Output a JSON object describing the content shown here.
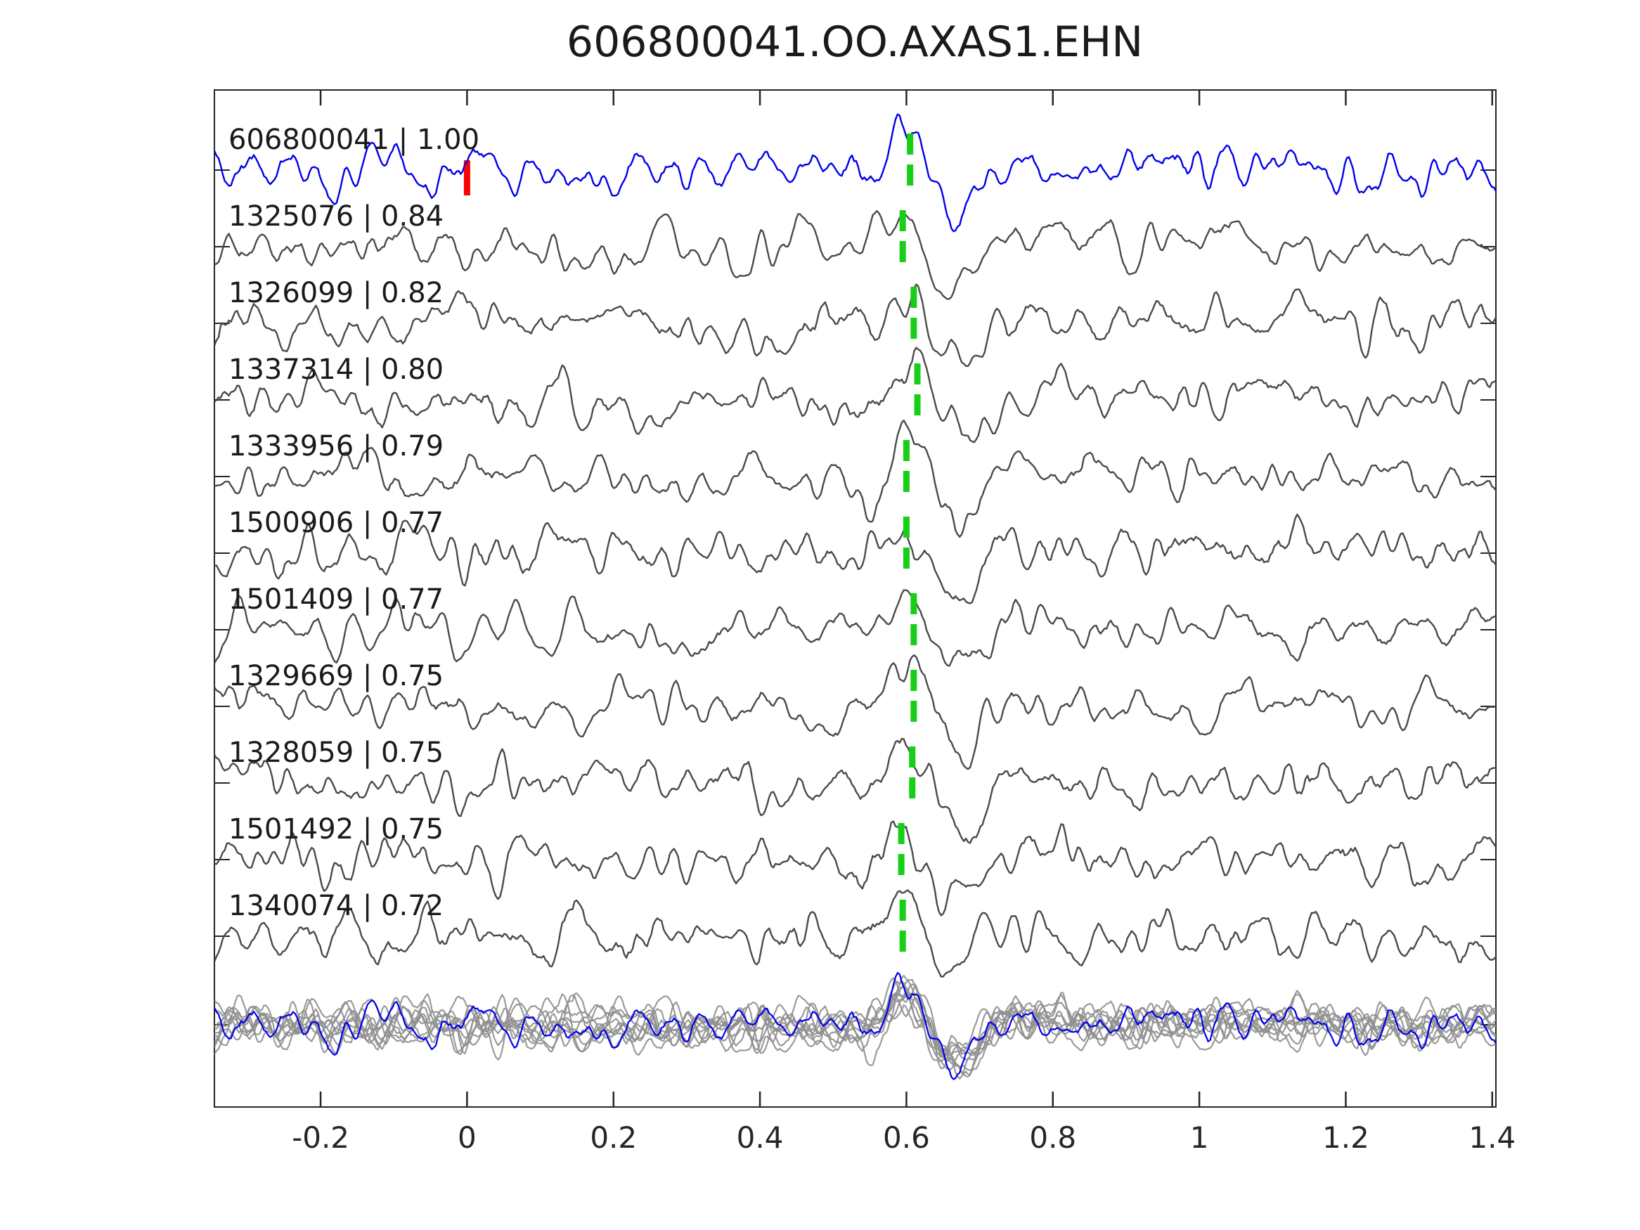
{
  "chart_data": {
    "type": "line",
    "title": "606800041.OO.AXAS1.EHN",
    "xlabel": "",
    "ylabel": "",
    "xlim": [
      -0.345,
      1.405
    ],
    "x_ticks": [
      -0.2,
      0,
      0.2,
      0.4,
      0.6,
      0.8,
      1,
      1.2,
      1.4
    ],
    "x_tick_labels": [
      "-0.2",
      "0",
      "0.2",
      "0.4",
      "0.6",
      "0.8",
      "1",
      "1.2",
      "1.4"
    ],
    "grid": false,
    "legend": "none",
    "pick_marker_color": "#17cf17",
    "trace_color": "#4a4a4a",
    "template_color": "#0000ee",
    "traces": [
      {
        "id": "606800041",
        "cc": "1.00",
        "label": "606800041 | 1.00",
        "role": "template",
        "color": "#0000ee",
        "pick_x": 0.605,
        "origin_marker_x": 0,
        "origin_marker_color": "#ff0000"
      },
      {
        "id": "1325076",
        "cc": "0.84",
        "label": "1325076 | 0.84",
        "role": "detection",
        "color": "#4a4a4a",
        "pick_x": 0.595
      },
      {
        "id": "1326099",
        "cc": "0.82",
        "label": "1326099 | 0.82",
        "role": "detection",
        "color": "#4a4a4a",
        "pick_x": 0.61
      },
      {
        "id": "1337314",
        "cc": "0.80",
        "label": "1337314 | 0.80",
        "role": "detection",
        "color": "#4a4a4a",
        "pick_x": 0.615
      },
      {
        "id": "1333956",
        "cc": "0.79",
        "label": "1333956 | 0.79",
        "role": "detection",
        "color": "#4a4a4a",
        "pick_x": 0.6
      },
      {
        "id": "1500906",
        "cc": "0.77",
        "label": "1500906 | 0.77",
        "role": "detection",
        "color": "#4a4a4a",
        "pick_x": 0.6
      },
      {
        "id": "1501409",
        "cc": "0.77",
        "label": "1501409 | 0.77",
        "role": "detection",
        "color": "#4a4a4a",
        "pick_x": 0.61
      },
      {
        "id": "1329669",
        "cc": "0.75",
        "label": "1329669 | 0.75",
        "role": "detection",
        "color": "#4a4a4a",
        "pick_x": 0.61
      },
      {
        "id": "1328059",
        "cc": "0.75",
        "label": "1328059 | 0.75",
        "role": "detection",
        "color": "#4a4a4a",
        "pick_x": 0.608
      },
      {
        "id": "1501492",
        "cc": "0.75",
        "label": "1501492 | 0.75",
        "role": "detection",
        "color": "#4a4a4a",
        "pick_x": 0.593
      },
      {
        "id": "1340074",
        "cc": "0.72",
        "label": "1340074 | 0.72",
        "role": "detection",
        "color": "#4a4a4a",
        "pick_x": 0.595
      }
    ],
    "overlay_row": {
      "member_color": "#8f8f8f",
      "template_color": "#0000ee",
      "align_x": 0.602
    }
  }
}
